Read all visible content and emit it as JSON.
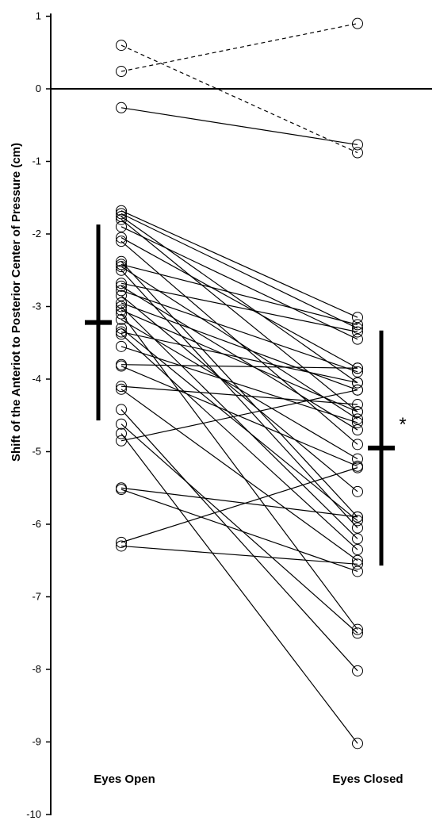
{
  "chart_data": {
    "type": "line",
    "title": "",
    "xlabel": "",
    "ylabel": "Shift of the Anteriot to Posterior Center of Pressure (cm)",
    "categories": [
      "Eyes Open",
      "Eyes Closed"
    ],
    "ylim": [
      -10,
      1
    ],
    "yticks": [
      1,
      0,
      -1,
      -2,
      -3,
      -4,
      -5,
      -6,
      -7,
      -8,
      -9,
      -10
    ],
    "grid": false,
    "legend": "none",
    "pairs": [
      {
        "open": 0.6,
        "closed": -0.88,
        "style": "dashed"
      },
      {
        "open": 0.24,
        "closed": 0.9,
        "style": "dashed"
      },
      {
        "open": -0.26,
        "closed": -0.77,
        "style": "solid"
      },
      {
        "open": -1.68,
        "closed": -3.15,
        "style": "solid"
      },
      {
        "open": -1.72,
        "closed": -3.3,
        "style": "solid"
      },
      {
        "open": -1.76,
        "closed": -4.05,
        "style": "solid"
      },
      {
        "open": -1.8,
        "closed": -4.45,
        "style": "solid"
      },
      {
        "open": -1.9,
        "closed": -3.45,
        "style": "solid"
      },
      {
        "open": -2.05,
        "closed": -3.85,
        "style": "solid"
      },
      {
        "open": -2.1,
        "closed": -4.9,
        "style": "solid"
      },
      {
        "open": -2.38,
        "closed": -5.9,
        "style": "solid"
      },
      {
        "open": -2.42,
        "closed": -3.25,
        "style": "solid"
      },
      {
        "open": -2.45,
        "closed": -4.55,
        "style": "solid"
      },
      {
        "open": -2.5,
        "closed": -6.05,
        "style": "solid"
      },
      {
        "open": -2.68,
        "closed": -3.35,
        "style": "solid"
      },
      {
        "open": -2.72,
        "closed": -4.7,
        "style": "solid"
      },
      {
        "open": -2.78,
        "closed": -3.9,
        "style": "solid"
      },
      {
        "open": -2.85,
        "closed": -5.55,
        "style": "solid"
      },
      {
        "open": -2.95,
        "closed": -4.15,
        "style": "solid"
      },
      {
        "open": -3.0,
        "closed": -6.2,
        "style": "solid"
      },
      {
        "open": -3.05,
        "closed": -4.45,
        "style": "solid"
      },
      {
        "open": -3.1,
        "closed": -7.45,
        "style": "solid"
      },
      {
        "open": -3.18,
        "closed": -5.1,
        "style": "solid"
      },
      {
        "open": -3.3,
        "closed": -5.95,
        "style": "solid"
      },
      {
        "open": -3.35,
        "closed": -4.05,
        "style": "solid"
      },
      {
        "open": -3.38,
        "closed": -6.35,
        "style": "solid"
      },
      {
        "open": -3.55,
        "closed": -4.6,
        "style": "solid"
      },
      {
        "open": -3.8,
        "closed": -3.85,
        "style": "solid"
      },
      {
        "open": -3.82,
        "closed": -5.2,
        "style": "solid"
      },
      {
        "open": -4.1,
        "closed": -4.35,
        "style": "solid"
      },
      {
        "open": -4.14,
        "closed": -6.5,
        "style": "solid"
      },
      {
        "open": -4.42,
        "closed": -8.02,
        "style": "solid"
      },
      {
        "open": -4.62,
        "closed": -7.5,
        "style": "solid"
      },
      {
        "open": -4.75,
        "closed": -9.02,
        "style": "solid"
      },
      {
        "open": -4.85,
        "closed": -4.15,
        "style": "solid"
      },
      {
        "open": -5.5,
        "closed": -5.9,
        "style": "solid"
      },
      {
        "open": -5.52,
        "closed": -6.65,
        "style": "solid"
      },
      {
        "open": -6.25,
        "closed": -5.22,
        "style": "solid"
      },
      {
        "open": -6.3,
        "closed": -6.55,
        "style": "solid"
      }
    ],
    "summary": {
      "open": {
        "mean": -3.22,
        "low": -4.57,
        "high": -1.87
      },
      "closed": {
        "mean": -4.95,
        "low": -6.57,
        "high": -3.33
      }
    },
    "annotations": [
      "*"
    ]
  }
}
